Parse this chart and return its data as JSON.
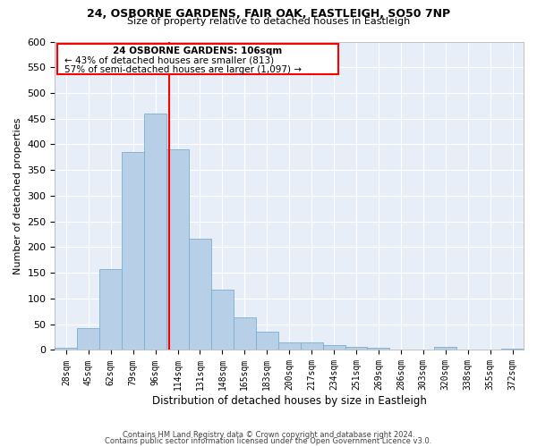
{
  "title1": "24, OSBORNE GARDENS, FAIR OAK, EASTLEIGH, SO50 7NP",
  "title2": "Size of property relative to detached houses in Eastleigh",
  "xlabel": "Distribution of detached houses by size in Eastleigh",
  "ylabel": "Number of detached properties",
  "bar_color": "#b8cfe8",
  "bar_edge_color": "#7aadd0",
  "background_color": "#e8eef8",
  "grid_color": "#ffffff",
  "categories": [
    "28sqm",
    "45sqm",
    "62sqm",
    "79sqm",
    "96sqm",
    "114sqm",
    "131sqm",
    "148sqm",
    "165sqm",
    "183sqm",
    "200sqm",
    "217sqm",
    "234sqm",
    "251sqm",
    "269sqm",
    "286sqm",
    "303sqm",
    "320sqm",
    "338sqm",
    "355sqm",
    "372sqm"
  ],
  "values": [
    5,
    42,
    158,
    386,
    460,
    390,
    216,
    118,
    63,
    35,
    15,
    15,
    10,
    6,
    5,
    0,
    0,
    6,
    0,
    0,
    2
  ],
  "ylim": [
    0,
    600
  ],
  "yticks": [
    0,
    50,
    100,
    150,
    200,
    250,
    300,
    350,
    400,
    450,
    500,
    550,
    600
  ],
  "vline_x": 4.6,
  "annotation_title": "24 OSBORNE GARDENS: 106sqm",
  "annotation_line1": "← 43% of detached houses are smaller (813)",
  "annotation_line2": "57% of semi-detached houses are larger (1,097) →",
  "footer1": "Contains HM Land Registry data © Crown copyright and database right 2024.",
  "footer2": "Contains public sector information licensed under the Open Government Licence v3.0."
}
